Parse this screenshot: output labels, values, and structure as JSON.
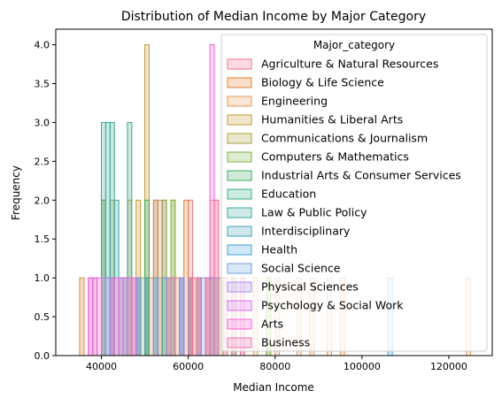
{
  "chart_data": {
    "type": "histogram",
    "title": "Distribution of Median Income by Major Category",
    "xlabel": "Median Income",
    "ylabel": "Frequency",
    "xlim": [
      29500,
      130000
    ],
    "ylim": [
      0,
      4.2
    ],
    "x_ticks": [
      40000,
      60000,
      80000,
      100000,
      120000
    ],
    "x_tick_labels": [
      "40000",
      "60000",
      "80000",
      "100000",
      "120000"
    ],
    "y_ticks": [
      0,
      0.5,
      1,
      1.5,
      2,
      2.5,
      3,
      3.5,
      4
    ],
    "y_tick_labels": [
      "0.0",
      "0.5",
      "1.0",
      "1.5",
      "2.0",
      "2.5",
      "3.0",
      "3.5",
      "4.0"
    ],
    "grid": false,
    "legend_title": "Major_category",
    "legend_position": "upper right",
    "series": [
      {
        "name": "Agriculture & Natural Resources",
        "color": "#f77189",
        "bars": [
          [
            46000,
            1
          ],
          [
            50000,
            1
          ],
          [
            52000,
            2
          ],
          [
            53000,
            2
          ],
          [
            54000,
            2
          ],
          [
            58000,
            1
          ],
          [
            60000,
            2
          ],
          [
            62000,
            1
          ]
        ]
      },
      {
        "name": "Biology & Life Science",
        "color": "#e8812f",
        "bars": [
          [
            35000,
            1
          ],
          [
            42000,
            1
          ],
          [
            47000,
            1
          ],
          [
            48000,
            1
          ],
          [
            51000,
            1
          ],
          [
            55000,
            1
          ],
          [
            57000,
            1
          ],
          [
            59000,
            2
          ],
          [
            61000,
            1
          ],
          [
            64000,
            1
          ]
        ]
      },
      {
        "name": "Engineering",
        "color": "#e89b55",
        "bars": [
          [
            55000,
            1
          ],
          [
            60000,
            1
          ],
          [
            61000,
            1
          ],
          [
            62000,
            1
          ],
          [
            64000,
            1
          ],
          [
            65000,
            2
          ],
          [
            66000,
            2
          ],
          [
            68000,
            1
          ],
          [
            70000,
            1
          ],
          [
            72000,
            1
          ],
          [
            75000,
            1
          ],
          [
            78000,
            1
          ],
          [
            80000,
            1
          ],
          [
            85000,
            1
          ],
          [
            88000,
            1
          ],
          [
            92000,
            1
          ],
          [
            95000,
            1
          ],
          [
            124000,
            1
          ]
        ]
      },
      {
        "name": "Humanities & Liberal Arts",
        "color": "#c49a32",
        "bars": [
          [
            38000,
            1
          ],
          [
            40000,
            2
          ],
          [
            42000,
            2
          ],
          [
            44000,
            1
          ],
          [
            46000,
            2
          ],
          [
            48000,
            2
          ],
          [
            50000,
            4
          ],
          [
            53000,
            1
          ]
        ]
      },
      {
        "name": "Communications & Journalism",
        "color": "#a8a53b",
        "bars": [
          [
            49000,
            1
          ],
          [
            52000,
            2
          ],
          [
            56000,
            2
          ]
        ]
      },
      {
        "name": "Computers & Mathematics",
        "color": "#7ab43e",
        "bars": [
          [
            54000,
            2
          ],
          [
            56000,
            2
          ],
          [
            58000,
            1
          ],
          [
            60000,
            1
          ],
          [
            65000,
            1
          ],
          [
            67000,
            1
          ],
          [
            70000,
            1
          ],
          [
            78000,
            1
          ]
        ]
      },
      {
        "name": "Industrial Arts & Consumer Services",
        "color": "#3aac5a",
        "bars": [
          [
            40000,
            2
          ],
          [
            45000,
            1
          ],
          [
            50000,
            2
          ],
          [
            55000,
            1
          ],
          [
            60000,
            1
          ],
          [
            66000,
            1
          ]
        ]
      },
      {
        "name": "Education",
        "color": "#36ad8a",
        "bars": [
          [
            40000,
            3
          ],
          [
            42000,
            3
          ],
          [
            46000,
            3
          ],
          [
            48000,
            1
          ],
          [
            50000,
            1
          ]
        ]
      },
      {
        "name": "Law & Public Policy",
        "color": "#38a9a3",
        "bars": [
          [
            41000,
            3
          ],
          [
            43000,
            2
          ],
          [
            50000,
            1
          ],
          [
            54000,
            1
          ],
          [
            56000,
            1
          ]
        ]
      },
      {
        "name": "Interdisciplinary",
        "color": "#3ba3b9",
        "bars": [
          [
            44000,
            1
          ]
        ]
      },
      {
        "name": "Health",
        "color": "#41a2d6",
        "bars": [
          [
            41000,
            1
          ],
          [
            45000,
            1
          ],
          [
            48000,
            1
          ],
          [
            52000,
            1
          ],
          [
            58000,
            1
          ],
          [
            62000,
            1
          ],
          [
            65000,
            1
          ],
          [
            106000,
            1
          ]
        ]
      },
      {
        "name": "Social Science",
        "color": "#6f9ee6",
        "bars": [
          [
            42000,
            1
          ],
          [
            48000,
            1
          ],
          [
            52000,
            1
          ],
          [
            58000,
            1
          ],
          [
            60000,
            1
          ],
          [
            63000,
            1
          ]
        ]
      },
      {
        "name": "Physical Sciences",
        "color": "#a48cf4",
        "bars": [
          [
            47000,
            1
          ],
          [
            55000,
            1
          ],
          [
            58000,
            1
          ],
          [
            62000,
            1
          ],
          [
            64000,
            1
          ],
          [
            66000,
            1
          ]
        ]
      },
      {
        "name": "Psychology & Social Work",
        "color": "#d470ee",
        "bars": [
          [
            37000,
            1
          ],
          [
            38000,
            1
          ],
          [
            40000,
            1
          ],
          [
            42000,
            1
          ],
          [
            44000,
            1
          ],
          [
            46000,
            1
          ]
        ]
      },
      {
        "name": "Arts",
        "color": "#f464d8",
        "bars": [
          [
            37000,
            1
          ],
          [
            39000,
            1
          ],
          [
            43000,
            1
          ],
          [
            45000,
            1
          ],
          [
            47000,
            1
          ],
          [
            65000,
            4
          ]
        ]
      },
      {
        "name": "Business",
        "color": "#f46eb1",
        "bars": [
          [
            56000,
            1
          ],
          [
            60000,
            1
          ],
          [
            62000,
            1
          ],
          [
            64000,
            1
          ],
          [
            66000,
            2
          ],
          [
            68000,
            1
          ],
          [
            70000,
            1
          ],
          [
            72000,
            1
          ]
        ]
      }
    ]
  }
}
